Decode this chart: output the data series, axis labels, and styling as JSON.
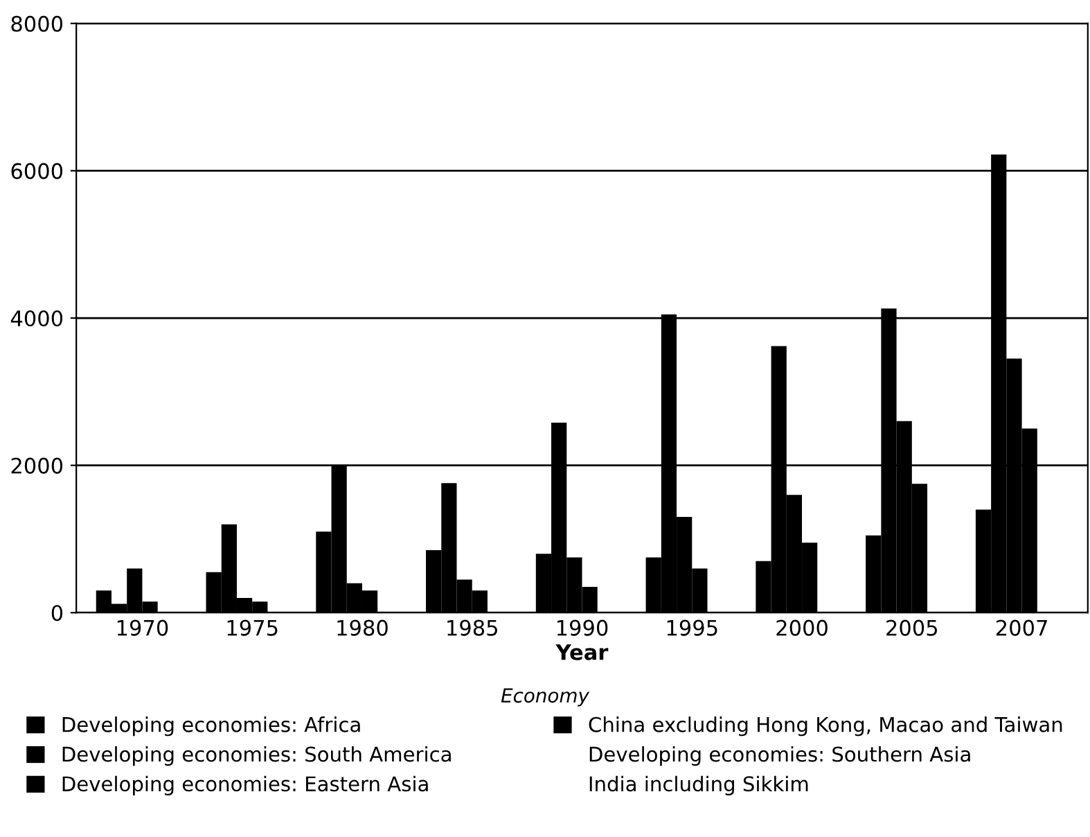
{
  "chart_data": {
    "type": "bar",
    "xlabel": "Year",
    "legend_title": "Economy",
    "categories": [
      "1970",
      "1975",
      "1980",
      "1985",
      "1990",
      "1995",
      "2000",
      "2005",
      "2007"
    ],
    "series": [
      {
        "name": "Developing economies: Africa",
        "color": "#000000",
        "values": [
          300,
          550,
          1100,
          850,
          800,
          750,
          700,
          1050,
          1400
        ]
      },
      {
        "name": "Developing economies: South America",
        "color": "#000000",
        "values": [
          120,
          1200,
          2000,
          1760,
          2580,
          4050,
          3620,
          4130,
          6220
        ]
      },
      {
        "name": "Developing economies: Eastern Asia",
        "color": "#000000",
        "values": [
          600,
          200,
          400,
          450,
          750,
          1300,
          1600,
          2600,
          3450
        ]
      },
      {
        "name": "China excluding Hong Kong, Macao and Taiwan",
        "color": "#000000",
        "values": [
          150,
          150,
          300,
          300,
          350,
          600,
          950,
          1750,
          2500
        ]
      },
      {
        "name": "Developing economies: Southern Asia",
        "values": [
          null,
          null,
          null,
          null,
          null,
          null,
          null,
          null,
          null
        ]
      },
      {
        "name": "India including Sikkim",
        "values": [
          null,
          null,
          null,
          null,
          null,
          null,
          null,
          null,
          null
        ]
      }
    ],
    "ylim": [
      0,
      8000
    ],
    "yticks": [
      0,
      2000,
      4000,
      6000,
      8000
    ],
    "grid": "y",
    "legend": "bottom"
  }
}
